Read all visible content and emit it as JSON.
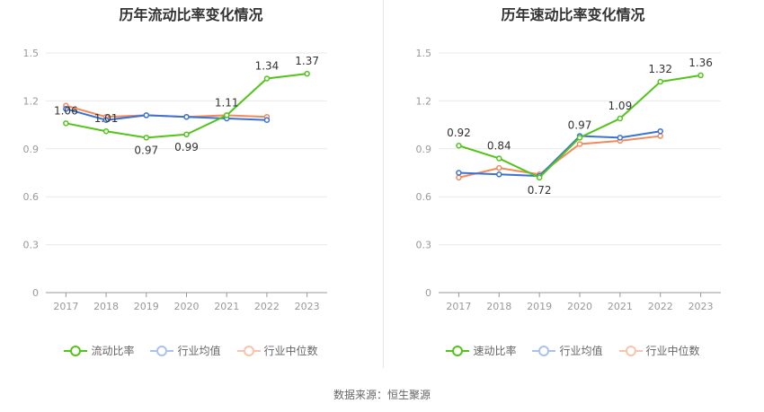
{
  "source_label": "数据来源：恒生聚源",
  "colors": {
    "main": "#52c41a",
    "avg": "#3a73d4",
    "median": "#f28a5c",
    "grid": "#e9e9e9",
    "axis": "#999999"
  },
  "chart_data": [
    {
      "type": "line",
      "title": "历年流动比率变化情况",
      "categories": [
        "2017",
        "2018",
        "2019",
        "2020",
        "2021",
        "2022",
        "2023"
      ],
      "yticks": [
        "0",
        "0.3",
        "0.6",
        "0.9",
        "1.2",
        "1.5"
      ],
      "ylim": [
        0,
        1.5
      ],
      "series": [
        {
          "name": "流动比率",
          "key": "main",
          "values": [
            1.06,
            1.01,
            0.97,
            0.99,
            1.11,
            1.34,
            1.37
          ],
          "labels": [
            "1.06",
            "1.01",
            "0.97",
            "0.99",
            "1.11",
            "1.34",
            "1.37"
          ]
        },
        {
          "name": "行业均值",
          "key": "avg",
          "values": [
            1.15,
            1.08,
            1.11,
            1.1,
            1.09,
            1.08,
            null
          ]
        },
        {
          "name": "行业中位数",
          "key": "median",
          "values": [
            1.17,
            1.1,
            1.11,
            1.1,
            1.11,
            1.1,
            null
          ]
        }
      ]
    },
    {
      "type": "line",
      "title": "历年速动比率变化情况",
      "categories": [
        "2017",
        "2018",
        "2019",
        "2020",
        "2021",
        "2022",
        "2023"
      ],
      "yticks": [
        "0",
        "0.3",
        "0.6",
        "0.9",
        "1.2",
        "1.5"
      ],
      "ylim": [
        0,
        1.5
      ],
      "series": [
        {
          "name": "速动比率",
          "key": "main",
          "values": [
            0.92,
            0.84,
            0.72,
            0.97,
            1.09,
            1.32,
            1.36
          ],
          "labels": [
            "0.92",
            "0.84",
            "0.72",
            "0.97",
            "1.09",
            "1.32",
            "1.36"
          ]
        },
        {
          "name": "行业均值",
          "key": "avg",
          "values": [
            0.75,
            0.74,
            0.73,
            0.98,
            0.97,
            1.01,
            null
          ]
        },
        {
          "name": "行业中位数",
          "key": "median",
          "values": [
            0.72,
            0.78,
            0.74,
            0.93,
            0.95,
            0.98,
            null
          ]
        }
      ]
    }
  ]
}
